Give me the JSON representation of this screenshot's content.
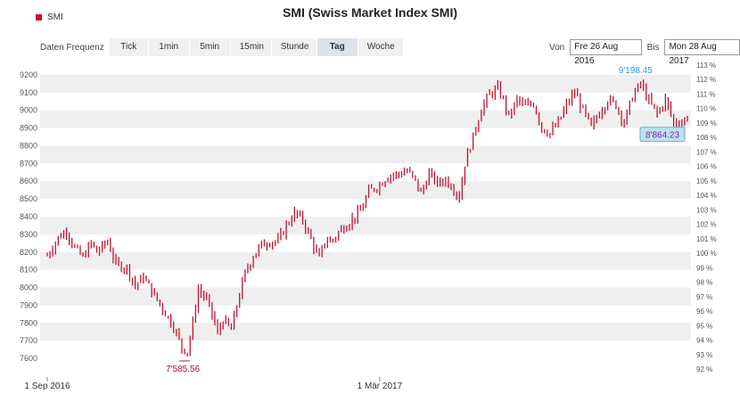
{
  "title": "SMI (Swiss Market Index SMI)",
  "legend": {
    "label": "SMI",
    "color": "#c8102e"
  },
  "toolbar": {
    "label": "Daten Frequenz",
    "buttons": [
      "Tick",
      "1min",
      "5min",
      "15min",
      "Stunde",
      "Tag",
      "Woche"
    ],
    "active": "Tag"
  },
  "range": {
    "from_label": "Von",
    "from_value": "Fre 26 Aug 2016",
    "to_label": "Bis",
    "to_value": "Mon 28 Aug 2017"
  },
  "chart_data": {
    "type": "ohlc",
    "title": "SMI (Swiss Market Index SMI)",
    "ylim": [
      7560,
      9260
    ],
    "y_ticks": [
      7600,
      7700,
      7800,
      7900,
      8000,
      8100,
      8200,
      8300,
      8400,
      8500,
      8600,
      8700,
      8800,
      8900,
      9000,
      9100,
      9200
    ],
    "y2_ticks": [
      "92 %",
      "93 %",
      "94 %",
      "95 %",
      "96 %",
      "97 %",
      "98 %",
      "99 %",
      "100 %",
      "101 %",
      "102 %",
      "103 %",
      "104 %",
      "105 %",
      "106 %",
      "107 %",
      "108 %",
      "109 %",
      "110 %",
      "111 %",
      "112 %",
      "113 %"
    ],
    "x_labels": [
      "1 Sep 2016",
      "1 Mär 2017"
    ],
    "x_label_index": [
      0,
      121
    ],
    "grid": "horizontal bands",
    "annotations": {
      "high": "9'198.45",
      "low": "7'585.56",
      "last": "8'864.23"
    },
    "series": [
      {
        "name": "SMI",
        "color": "#c8102e",
        "anchors": [
          [
            0,
            8180
          ],
          [
            4,
            8280
          ],
          [
            7,
            8320
          ],
          [
            10,
            8220
          ],
          [
            13,
            8170
          ],
          [
            16,
            8250
          ],
          [
            18,
            8200
          ],
          [
            22,
            8260
          ],
          [
            25,
            8130
          ],
          [
            29,
            8110
          ],
          [
            32,
            8010
          ],
          [
            35,
            8060
          ],
          [
            38,
            7980
          ],
          [
            42,
            7880
          ],
          [
            46,
            7780
          ],
          [
            49,
            7660
          ],
          [
            51,
            7640
          ],
          [
            53,
            7800
          ],
          [
            55,
            7990
          ],
          [
            58,
            7930
          ],
          [
            60,
            7850
          ],
          [
            62,
            7740
          ],
          [
            64,
            7820
          ],
          [
            67,
            7760
          ],
          [
            69,
            7900
          ],
          [
            72,
            8080
          ],
          [
            75,
            8180
          ],
          [
            78,
            8240
          ],
          [
            81,
            8260
          ],
          [
            84,
            8260
          ],
          [
            87,
            8350
          ],
          [
            90,
            8420
          ],
          [
            93,
            8380
          ],
          [
            96,
            8270
          ],
          [
            99,
            8160
          ],
          [
            101,
            8260
          ],
          [
            104,
            8270
          ],
          [
            107,
            8330
          ],
          [
            110,
            8370
          ],
          [
            114,
            8430
          ],
          [
            117,
            8540
          ],
          [
            121,
            8580
          ],
          [
            124,
            8630
          ],
          [
            128,
            8640
          ],
          [
            131,
            8660
          ],
          [
            134,
            8600
          ],
          [
            136,
            8530
          ],
          [
            139,
            8640
          ],
          [
            142,
            8590
          ],
          [
            145,
            8610
          ],
          [
            148,
            8560
          ],
          [
            150,
            8510
          ],
          [
            152,
            8700
          ],
          [
            155,
            8850
          ],
          [
            158,
            9010
          ],
          [
            161,
            9090
          ],
          [
            164,
            9120
          ],
          [
            166,
            9060
          ],
          [
            168,
            8960
          ],
          [
            171,
            9060
          ],
          [
            174,
            9020
          ],
          [
            177,
            9040
          ],
          [
            180,
            8900
          ],
          [
            183,
            8870
          ],
          [
            186,
            8930
          ],
          [
            189,
            9030
          ],
          [
            192,
            9100
          ],
          [
            195,
            9000
          ],
          [
            198,
            8900
          ],
          [
            201,
            8990
          ],
          [
            204,
            9060
          ],
          [
            207,
            9030
          ],
          [
            210,
            8930
          ],
          [
            213,
            9080
          ],
          [
            216,
            9150
          ],
          [
            219,
            9050
          ],
          [
            222,
            8980
          ],
          [
            225,
            9060
          ],
          [
            228,
            8930
          ],
          [
            231,
            8930
          ],
          [
            233,
            8964
          ]
        ]
      }
    ]
  }
}
